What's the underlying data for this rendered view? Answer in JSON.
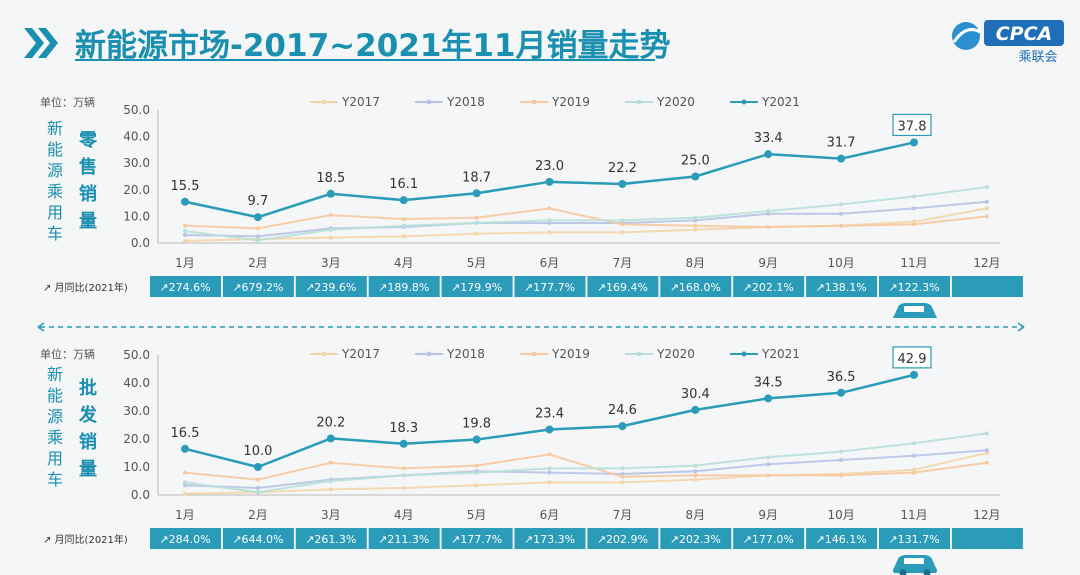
{
  "title": "新能源市场-2017~2021年11月销量走势",
  "logo": {
    "text": "CPCA",
    "sub": "乘联会"
  },
  "colors": {
    "accent": "#1a8fb0",
    "y2021": "#2a9bb8",
    "y2017": "#f2d6a8",
    "y2018": "#b9c3e6",
    "y2019": "#f7c9a0",
    "y2020": "#b8e0d8"
  },
  "chart_data": [
    {
      "type": "line",
      "unit": "单位：万辆",
      "vertical_label": "新能源乘用车",
      "series_label": "零售销量",
      "categories": [
        "1月",
        "2月",
        "3月",
        "4月",
        "5月",
        "6月",
        "7月",
        "8月",
        "9月",
        "10月",
        "11月",
        "12月"
      ],
      "ylim": [
        0,
        50
      ],
      "yticks": [
        "0.0",
        "10.0",
        "20.0",
        "30.0",
        "40.0",
        "50.0"
      ],
      "series": [
        {
          "name": "Y2017",
          "values": [
            0.8,
            1.5,
            2.0,
            2.5,
            3.5,
            4.0,
            4.0,
            5.0,
            6.0,
            6.5,
            8.0,
            13.0
          ]
        },
        {
          "name": "Y2018",
          "values": [
            3.0,
            2.5,
            5.5,
            6.0,
            7.5,
            7.5,
            7.5,
            8.5,
            11.0,
            11.0,
            13.0,
            15.5
          ]
        },
        {
          "name": "Y2019",
          "values": [
            6.5,
            5.5,
            10.5,
            9.0,
            9.5,
            13.0,
            7.0,
            6.5,
            6.0,
            6.5,
            7.0,
            10.0
          ]
        },
        {
          "name": "Y2020",
          "values": [
            4.5,
            1.0,
            5.0,
            6.5,
            7.5,
            8.5,
            8.5,
            9.5,
            12.0,
            14.5,
            17.5,
            21.0
          ]
        },
        {
          "name": "Y2021",
          "values": [
            15.5,
            9.7,
            18.5,
            16.1,
            18.7,
            23.0,
            22.2,
            25.0,
            33.4,
            31.7,
            37.8,
            null
          ]
        }
      ],
      "data_labels": [
        "15.5",
        "9.7",
        "18.5",
        "16.1",
        "18.7",
        "23.0",
        "22.2",
        "25.0",
        "33.4",
        "31.7",
        "37.8"
      ],
      "yoy_label": "月同比(2021年)",
      "yoy": [
        "274.6%",
        "679.2%",
        "239.6%",
        "189.8%",
        "179.9%",
        "177.7%",
        "169.4%",
        "168.0%",
        "202.1%",
        "138.1%",
        "122.3%",
        ""
      ]
    },
    {
      "type": "line",
      "unit": "单位：万辆",
      "vertical_label": "新能源乘用车",
      "series_label": "批发销量",
      "categories": [
        "1月",
        "2月",
        "3月",
        "4月",
        "5月",
        "6月",
        "7月",
        "8月",
        "9月",
        "10月",
        "11月",
        "12月"
      ],
      "ylim": [
        0,
        50
      ],
      "yticks": [
        "0.0",
        "10.0",
        "20.0",
        "30.0",
        "40.0",
        "50.0"
      ],
      "series": [
        {
          "name": "Y2017",
          "values": [
            0.5,
            1.0,
            2.0,
            2.5,
            3.5,
            4.5,
            4.5,
            5.5,
            7.0,
            7.5,
            9.0,
            15.0
          ]
        },
        {
          "name": "Y2018",
          "values": [
            3.5,
            2.5,
            5.5,
            7.0,
            8.5,
            8.0,
            7.5,
            8.5,
            11.0,
            12.5,
            14.0,
            16.0
          ]
        },
        {
          "name": "Y2019",
          "values": [
            8.0,
            5.5,
            11.5,
            9.5,
            10.5,
            14.5,
            6.5,
            7.0,
            7.0,
            7.0,
            8.0,
            11.5
          ]
        },
        {
          "name": "Y2020",
          "values": [
            4.5,
            1.0,
            5.0,
            7.0,
            8.0,
            9.5,
            9.5,
            10.5,
            13.5,
            15.5,
            18.5,
            22.0
          ]
        },
        {
          "name": "Y2021",
          "values": [
            16.5,
            10.0,
            20.2,
            18.3,
            19.8,
            23.4,
            24.6,
            30.4,
            34.5,
            36.5,
            42.9,
            null
          ]
        }
      ],
      "data_labels": [
        "16.5",
        "10.0",
        "20.2",
        "18.3",
        "19.8",
        "23.4",
        "24.6",
        "30.4",
        "34.5",
        "36.5",
        "42.9"
      ],
      "yoy_label": "月同比(2021年)",
      "yoy": [
        "284.0%",
        "644.0%",
        "261.3%",
        "211.3%",
        "177.7%",
        "173.3%",
        "202.9%",
        "202.3%",
        "177.0%",
        "146.1%",
        "131.7%",
        ""
      ]
    }
  ]
}
